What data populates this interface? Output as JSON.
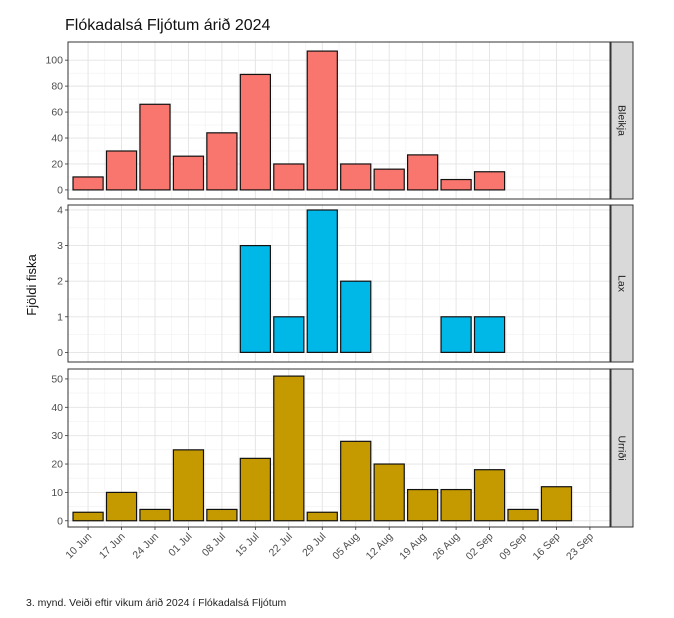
{
  "caption": "3. mynd. Veiði eftir vikum árið 2024 í Flókadalsá Fljótum",
  "chart_data": {
    "type": "bar",
    "title": "Flókadalsá Fljótum árið 2024",
    "ylabel": "Fjöldi fiska",
    "xlabel": "",
    "x_ticks": [
      "10 Jun",
      "17 Jun",
      "24 Jun",
      "01 Jul",
      "08 Jul",
      "15 Jul",
      "22 Jul",
      "29 Jul",
      "05 Aug",
      "12 Aug",
      "19 Aug",
      "26 Aug",
      "02 Sep",
      "09 Sep",
      "16 Sep",
      "23 Sep"
    ],
    "weeks": [
      "10 Jun",
      "17 Jun",
      "24 Jun",
      "01 Jul",
      "08 Jul",
      "15 Jul",
      "22 Jul",
      "29 Jul",
      "05 Aug",
      "12 Aug",
      "19 Aug",
      "26 Aug",
      "02 Sep",
      "09 Sep",
      "16 Sep"
    ],
    "grid": true,
    "legend": "none",
    "panels": [
      {
        "name": "Bleikja",
        "color": "#F8766D",
        "ylim": [
          -7,
          114
        ],
        "yticks": [
          0,
          20,
          40,
          60,
          80,
          100
        ],
        "values": [
          10,
          30,
          66,
          26,
          44,
          89,
          20,
          107,
          20,
          16,
          27,
          8,
          14,
          null,
          null
        ]
      },
      {
        "name": "Lax",
        "color": "#00B8E7",
        "ylim": [
          -0.27,
          4.14
        ],
        "yticks": [
          0,
          1,
          2,
          3,
          4
        ],
        "values": [
          null,
          null,
          null,
          null,
          null,
          3,
          1,
          4,
          2,
          null,
          null,
          1,
          1,
          null,
          null
        ]
      },
      {
        "name": "Urriði",
        "color": "#C49A00",
        "ylim": [
          -2.2,
          53.5
        ],
        "yticks": [
          0,
          10,
          20,
          30,
          40,
          50
        ],
        "values": [
          3,
          10,
          4,
          25,
          4,
          22,
          51,
          3,
          28,
          20,
          11,
          11,
          18,
          4,
          12
        ]
      }
    ]
  }
}
